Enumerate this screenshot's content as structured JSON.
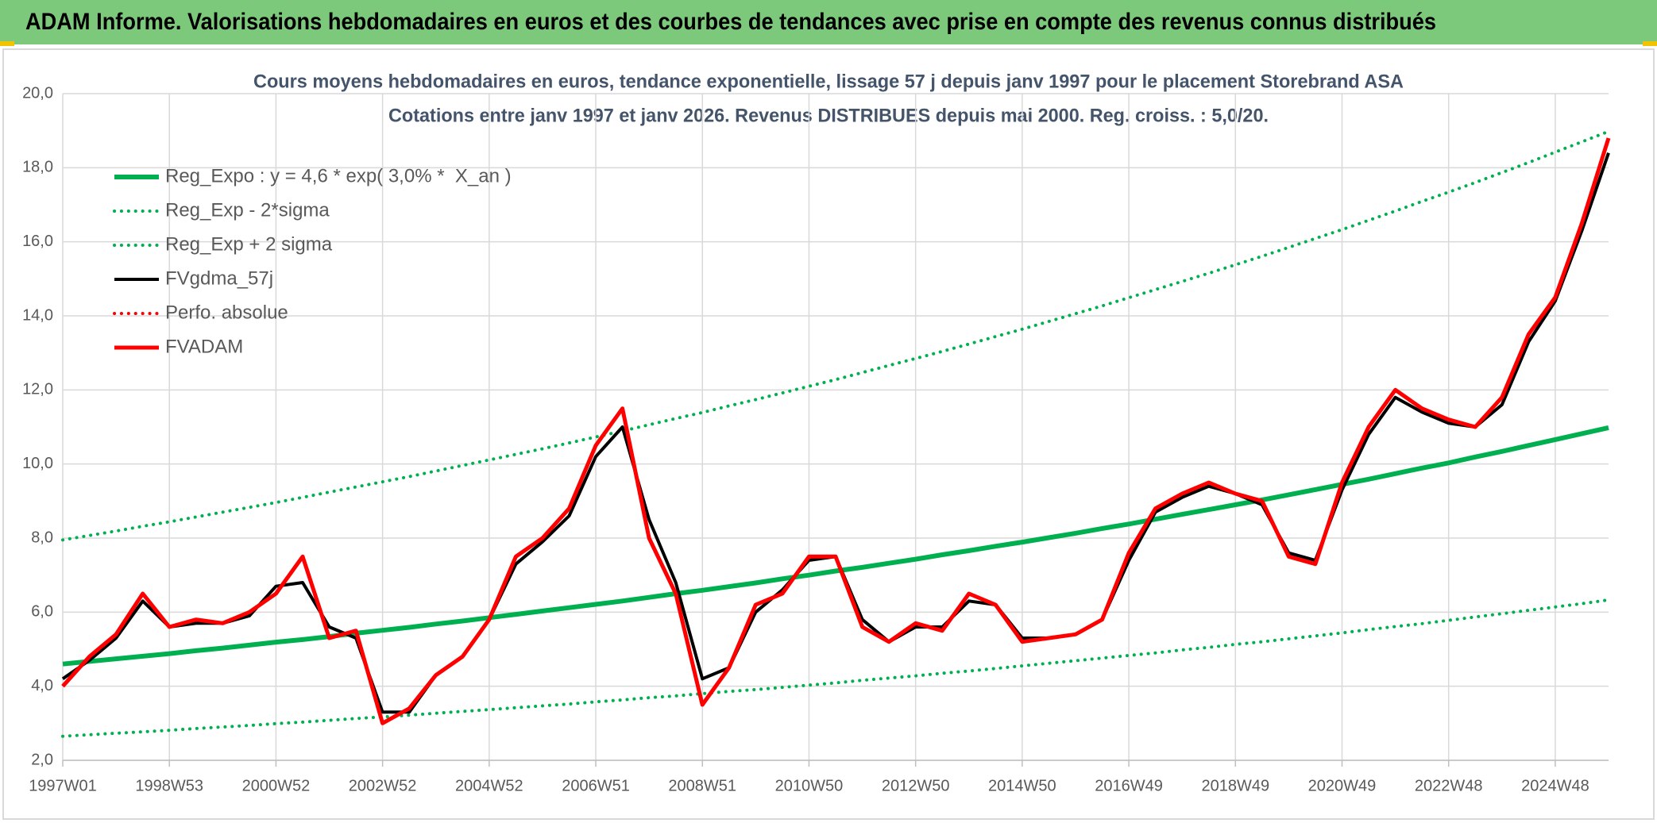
{
  "chart_data": {
    "type": "line",
    "title": "ADAM Informe. Valorisations hebdomadaires en euros et des courbes de tendances avec prise en compte des revenus connus distribués",
    "subtitle": [
      "Cours moyens hebdomadaires en euros, tendance exponentielle, lissage 57 j depuis janv 1997 pour le placement Storebrand ASA",
      "Cotations entre janv 1997 et janv 2026. Revenus DISTRIBUES depuis mai 2000. Reg. croiss. : 5,0/20."
    ],
    "categories": [
      "1997W01",
      null,
      null,
      null,
      "1998W53",
      null,
      null,
      null,
      "2000W52",
      null,
      null,
      null,
      "2002W52",
      null,
      null,
      null,
      "2004W52",
      null,
      null,
      null,
      "2006W51",
      null,
      null,
      null,
      "2008W51",
      null,
      null,
      null,
      "2010W50",
      null,
      null,
      null,
      "2012W50",
      null,
      null,
      null,
      "2014W50",
      null,
      null,
      null,
      "2016W49",
      null,
      null,
      null,
      "2018W49",
      null,
      null,
      null,
      "2020W49",
      null,
      null,
      null,
      "2022W48",
      null,
      null,
      null,
      "2024W48",
      null,
      null
    ],
    "ylim": [
      2,
      20
    ],
    "yticks": [
      {
        "value": 2,
        "label": "2,0"
      },
      {
        "value": 4,
        "label": "4,0"
      },
      {
        "value": 6,
        "label": "6,0"
      },
      {
        "value": 8,
        "label": "8,0"
      },
      {
        "value": 10,
        "label": "10,0"
      },
      {
        "value": 12,
        "label": "12,0"
      },
      {
        "value": 14,
        "label": "14,0"
      },
      {
        "value": 16,
        "label": "16,0"
      },
      {
        "value": 18,
        "label": "18,0"
      },
      {
        "value": 20,
        "label": "20,0"
      }
    ],
    "grid": true,
    "legend": "upper-left",
    "series": [
      {
        "name": "Reg_Expo : y = 4,6 * exp( 3,0% *  X_an )",
        "color": "#00b050",
        "style": "solid",
        "width": 6,
        "values": [
          4.6,
          4.67,
          4.74,
          4.81,
          4.88,
          4.96,
          5.03,
          5.11,
          5.19,
          5.26,
          5.34,
          5.43,
          5.51,
          5.59,
          5.68,
          5.76,
          5.85,
          5.94,
          6.03,
          6.12,
          6.21,
          6.3,
          6.4,
          6.5,
          6.59,
          6.69,
          6.79,
          6.9,
          7.0,
          7.11,
          7.21,
          7.32,
          7.43,
          7.55,
          7.66,
          7.78,
          7.89,
          8.01,
          8.13,
          8.26,
          8.38,
          8.51,
          8.64,
          8.77,
          8.9,
          9.03,
          9.17,
          9.31,
          9.45,
          9.59,
          9.74,
          9.89,
          10.03,
          10.19,
          10.34,
          10.5,
          10.66,
          10.82,
          10.98
        ]
      },
      {
        "name": "Reg_Exp - 2*sigma",
        "color": "#00b050",
        "style": "dotted",
        "width": 4,
        "values": [
          2.65,
          2.69,
          2.73,
          2.77,
          2.81,
          2.86,
          2.9,
          2.94,
          2.99,
          3.03,
          3.08,
          3.13,
          3.17,
          3.22,
          3.27,
          3.32,
          3.37,
          3.42,
          3.47,
          3.52,
          3.58,
          3.63,
          3.69,
          3.74,
          3.8,
          3.86,
          3.91,
          3.97,
          4.03,
          4.09,
          4.16,
          4.22,
          4.28,
          4.35,
          4.41,
          4.48,
          4.55,
          4.62,
          4.69,
          4.76,
          4.83,
          4.9,
          4.98,
          5.05,
          5.13,
          5.2,
          5.28,
          5.36,
          5.44,
          5.53,
          5.61,
          5.69,
          5.78,
          5.87,
          5.96,
          6.05,
          6.14,
          6.23,
          6.33
        ]
      },
      {
        "name": "Reg_Exp + 2 sigma",
        "color": "#00b050",
        "style": "dotted",
        "width": 4,
        "values": [
          7.95,
          8.07,
          8.19,
          8.32,
          8.44,
          8.57,
          8.7,
          8.83,
          8.96,
          9.1,
          9.24,
          9.38,
          9.52,
          9.66,
          9.81,
          9.96,
          10.11,
          10.26,
          10.41,
          10.57,
          10.73,
          10.89,
          11.06,
          11.23,
          11.39,
          11.57,
          11.74,
          11.92,
          12.1,
          12.28,
          12.47,
          12.66,
          12.85,
          13.04,
          13.24,
          13.44,
          13.64,
          13.85,
          14.06,
          14.27,
          14.49,
          14.71,
          14.93,
          15.15,
          15.38,
          15.61,
          15.85,
          16.09,
          16.33,
          16.58,
          16.83,
          17.09,
          17.34,
          17.6,
          17.87,
          18.14,
          18.42,
          18.7,
          18.98
        ]
      },
      {
        "name": "FVgdma_57j",
        "color": "#000000",
        "style": "solid",
        "width": 4,
        "values": [
          4.2,
          4.7,
          5.3,
          6.3,
          5.6,
          5.7,
          5.7,
          5.9,
          6.7,
          6.8,
          5.6,
          5.3,
          3.3,
          3.3,
          4.3,
          4.8,
          5.8,
          7.3,
          7.9,
          8.6,
          10.2,
          11.0,
          8.5,
          6.8,
          4.2,
          4.5,
          6.0,
          6.6,
          7.4,
          7.5,
          5.8,
          5.2,
          5.6,
          5.6,
          6.3,
          6.2,
          5.3,
          5.3,
          5.4,
          5.8,
          7.4,
          8.7,
          9.1,
          9.4,
          9.2,
          8.9,
          7.6,
          7.4,
          9.3,
          10.8,
          11.8,
          11.4,
          11.1,
          11.0,
          11.6,
          13.3,
          14.4,
          16.3,
          18.4
        ]
      },
      {
        "name": "Perfo. absolue",
        "color": "#ff0000",
        "style": "dotted",
        "width": 4,
        "values": [
          null,
          null,
          null,
          null,
          null,
          null,
          null,
          null,
          null,
          null,
          null,
          null,
          null,
          null,
          null,
          null,
          null,
          null,
          null,
          null,
          null,
          null,
          null,
          null,
          null,
          null,
          null,
          null,
          null,
          null,
          null,
          null,
          null,
          null,
          null,
          null,
          null,
          null,
          null,
          null,
          null,
          null,
          null,
          null,
          null,
          null,
          null,
          null,
          null,
          null,
          null,
          null,
          null,
          null,
          null,
          null,
          null,
          null,
          null
        ]
      },
      {
        "name": "FVADAM",
        "color": "#ff0000",
        "style": "solid",
        "width": 5,
        "values": [
          4.0,
          4.8,
          5.4,
          6.5,
          5.6,
          5.8,
          5.7,
          6.0,
          6.5,
          7.5,
          5.3,
          5.5,
          3.0,
          3.4,
          4.3,
          4.8,
          5.8,
          7.5,
          8.0,
          8.8,
          10.5,
          11.5,
          8.0,
          6.5,
          3.5,
          4.5,
          6.2,
          6.5,
          7.5,
          7.5,
          5.6,
          5.2,
          5.7,
          5.5,
          6.5,
          6.2,
          5.2,
          5.3,
          5.4,
          5.8,
          7.6,
          8.8,
          9.2,
          9.5,
          9.2,
          9.0,
          7.5,
          7.3,
          9.5,
          11.0,
          12.0,
          11.5,
          11.2,
          11.0,
          11.8,
          13.5,
          14.5,
          16.5,
          18.8
        ]
      }
    ]
  }
}
